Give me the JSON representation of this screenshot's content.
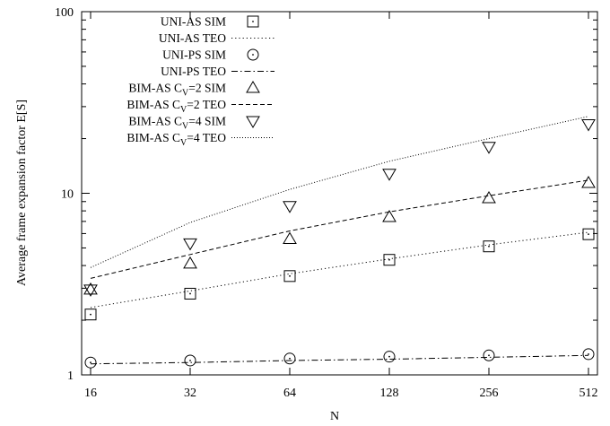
{
  "chart_data": {
    "type": "line",
    "title": "",
    "xlabel": "N",
    "ylabel": "Average frame expansion factor E[S]",
    "x_scale": "log2",
    "y_scale": "log10",
    "xlim": [
      16,
      512
    ],
    "ylim": [
      1,
      100
    ],
    "x_ticks": [
      16,
      32,
      64,
      128,
      256,
      512
    ],
    "x_tick_labels": [
      "16",
      "32",
      "64",
      "128",
      "256",
      "512"
    ],
    "y_ticks": [
      1,
      10,
      100
    ],
    "y_tick_labels": [
      "1",
      "10",
      "100"
    ],
    "grid": false,
    "legend_position": "top-left",
    "series": [
      {
        "name": "UNI-AS SIM",
        "style": "markers",
        "marker": "square",
        "x": [
          16,
          32,
          64,
          128,
          256,
          512
        ],
        "y": [
          2.15,
          2.8,
          3.5,
          4.3,
          5.1,
          5.95
        ]
      },
      {
        "name": "UNI-AS TEO",
        "style": "dotted",
        "x": [
          16,
          32,
          64,
          128,
          256,
          512
        ],
        "y": [
          2.35,
          2.9,
          3.6,
          4.35,
          5.2,
          6.1
        ]
      },
      {
        "name": "UNI-PS SIM",
        "style": "markers",
        "marker": "circle",
        "x": [
          16,
          32,
          64,
          128,
          256,
          512
        ],
        "y": [
          1.17,
          1.2,
          1.23,
          1.26,
          1.28,
          1.3
        ]
      },
      {
        "name": "UNI-PS TEO",
        "style": "dashdot",
        "x": [
          16,
          32,
          64,
          128,
          256,
          512
        ],
        "y": [
          1.15,
          1.17,
          1.2,
          1.22,
          1.25,
          1.28
        ]
      },
      {
        "name": "BIM-AS C",
        "name_sub": "V",
        "name_suffix": "=2 SIM",
        "style": "markers",
        "marker": "triangle-up",
        "x": [
          16,
          32,
          64,
          128,
          256,
          512
        ],
        "y": [
          2.95,
          4.1,
          5.6,
          7.4,
          9.4,
          11.4
        ]
      },
      {
        "name": "BIM-AS C",
        "name_sub": "V",
        "name_suffix": "=2 TEO",
        "style": "dashed",
        "x": [
          16,
          32,
          64,
          128,
          256,
          512
        ],
        "y": [
          3.4,
          4.6,
          6.2,
          7.9,
          9.7,
          11.8
        ]
      },
      {
        "name": "BIM-AS C",
        "name_sub": "V",
        "name_suffix": "=4 SIM",
        "style": "markers",
        "marker": "triangle-down",
        "x": [
          16,
          32,
          64,
          128,
          256,
          512
        ],
        "y": [
          2.95,
          5.3,
          8.5,
          12.8,
          18.0,
          24.0
        ]
      },
      {
        "name": "BIM-AS C",
        "name_sub": "V",
        "name_suffix": "=4 TEO",
        "style": "dotted-fine",
        "x": [
          16,
          32,
          64,
          128,
          256,
          512
        ],
        "y": [
          3.9,
          6.9,
          10.5,
          15.0,
          20.0,
          26.5
        ]
      }
    ]
  }
}
